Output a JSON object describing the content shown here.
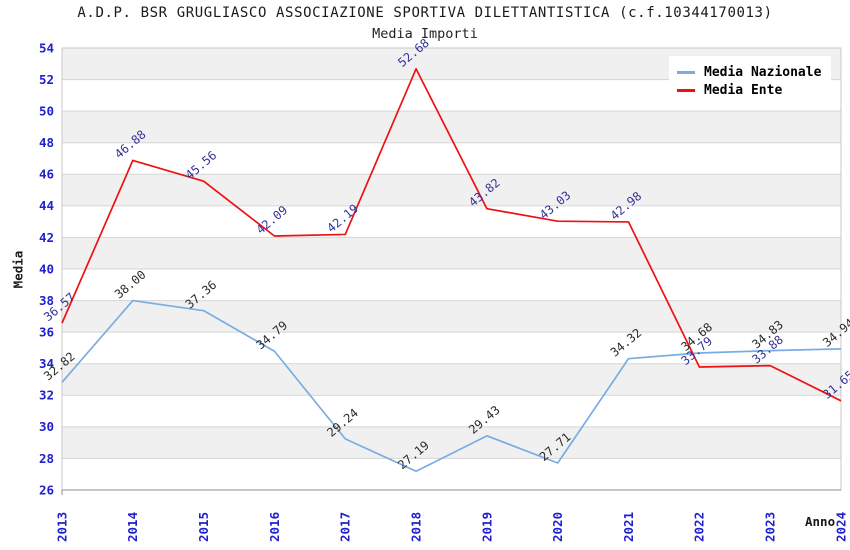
{
  "chart_data": {
    "type": "line",
    "title": "A.D.P. BSR GRUGLIASCO ASSOCIAZIONE SPORTIVA DILETTANTISTICA (c.f.10344170013)",
    "subtitle": "Media Importi",
    "xlabel": "Anno",
    "ylabel": "Media",
    "x": [
      2013,
      2014,
      2015,
      2016,
      2017,
      2018,
      2019,
      2020,
      2021,
      2022,
      2023,
      2024
    ],
    "series": [
      {
        "name": "Media Nazionale",
        "color": "#79ade2",
        "label_color": "#2b2b2b",
        "values": [
          32.82,
          38.0,
          37.36,
          34.79,
          29.24,
          27.19,
          29.43,
          27.71,
          34.32,
          34.68,
          34.83,
          34.94
        ]
      },
      {
        "name": "Media Ente",
        "color": "#ee1111",
        "label_color": "#333399",
        "values": [
          36.57,
          46.88,
          45.56,
          42.09,
          42.19,
          52.68,
          43.82,
          43.03,
          42.98,
          33.79,
          33.88,
          31.65
        ]
      }
    ],
    "ylim": [
      26,
      54
    ],
    "ytick_step": 2,
    "grid": true,
    "legend_position": "top-right",
    "value_label_decimals": 2
  },
  "colors": {
    "tick_label": "#2020cf",
    "grid": "#d6d6d6",
    "band_gray": "#f0f0f0",
    "band_white": "#ffffff",
    "border": "#c9c9c9",
    "axis": "#8f8f8f",
    "legend_bg": "#ffffff"
  }
}
